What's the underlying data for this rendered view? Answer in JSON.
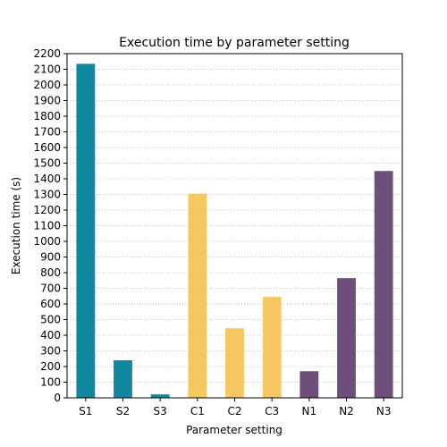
{
  "chart_data": {
    "type": "bar",
    "title": "Execution time by parameter setting",
    "xlabel": "Parameter setting",
    "ylabel": "Execution time (s)",
    "categories": [
      "S1",
      "S2",
      "S3",
      "C1",
      "C2",
      "C3",
      "N1",
      "N2",
      "N3"
    ],
    "values": [
      2135,
      240,
      22,
      1305,
      445,
      645,
      170,
      765,
      1450
    ],
    "bar_colors": [
      "#11869f",
      "#11869f",
      "#11869f",
      "#f5c760",
      "#f5c760",
      "#f5c760",
      "#6e4e7b",
      "#6e4e7b",
      "#6e4e7b"
    ],
    "ylim": [
      0,
      2200
    ],
    "yticks": [
      0,
      100,
      200,
      300,
      400,
      500,
      600,
      700,
      800,
      900,
      1000,
      1100,
      1200,
      1300,
      1400,
      1500,
      1600,
      1700,
      1800,
      1900,
      2000,
      2100,
      2200
    ],
    "grid": "y-dotted",
    "legend": "none"
  }
}
